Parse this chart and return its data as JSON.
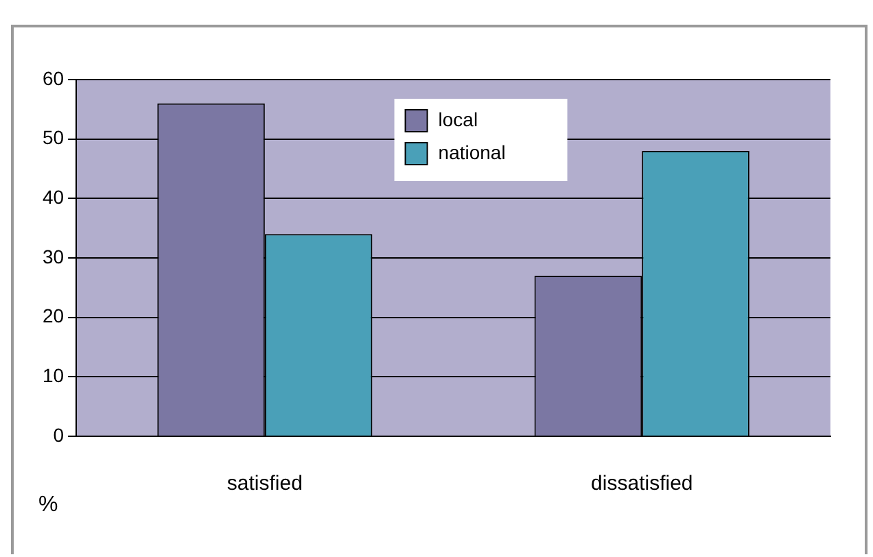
{
  "chart_data": {
    "type": "bar",
    "ylabel": "%",
    "categories": [
      "satisfied",
      "dissatisfied"
    ],
    "series": [
      {
        "name": "local",
        "color": "#7b77a3",
        "values": [
          56,
          27
        ]
      },
      {
        "name": "national",
        "color": "#4aa0b8",
        "values": [
          34,
          48
        ]
      }
    ],
    "ylim": [
      0,
      60
    ],
    "yticks": [
      0,
      10,
      20,
      30,
      40,
      50,
      60
    ],
    "grid": "y",
    "legend": "top"
  }
}
